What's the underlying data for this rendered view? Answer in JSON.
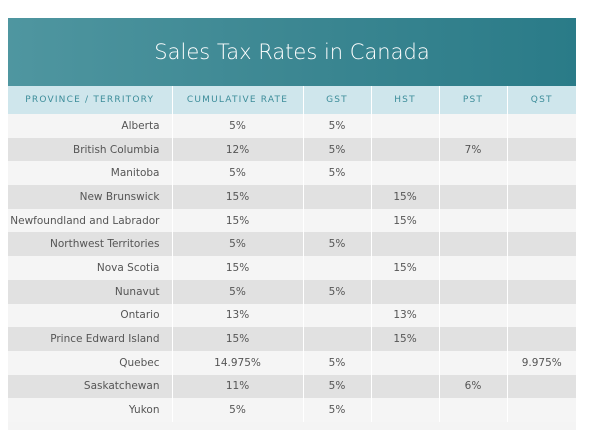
{
  "header": {
    "title": "Sales Tax Rates in Canada"
  },
  "table": {
    "columns": [
      "PROVINCE / TERRITORY",
      "CUMULATIVE RATE",
      "GST",
      "HST",
      "PST",
      "QST"
    ],
    "rows": [
      [
        "Alberta",
        "5%",
        "5%",
        null,
        null,
        null
      ],
      [
        "British Columbia",
        "12%",
        "5%",
        null,
        "7%",
        null
      ],
      [
        "Manitoba",
        "5%",
        "5%",
        null,
        null,
        null
      ],
      [
        "New Brunswick",
        "15%",
        null,
        "15%",
        null,
        null
      ],
      [
        "Newfoundland and Labrador",
        "15%",
        null,
        "15%",
        null,
        null
      ],
      [
        "Northwest Territories",
        "5%",
        "5%",
        null,
        null,
        null
      ],
      [
        "Nova Scotia",
        "15%",
        null,
        "15%",
        null,
        null
      ],
      [
        "Nunavut",
        "5%",
        "5%",
        null,
        null,
        null
      ],
      [
        "Ontario",
        "13%",
        null,
        "13%",
        null,
        null
      ],
      [
        "Prince Edward Island",
        "15%",
        null,
        "15%",
        null,
        null
      ],
      [
        "Quebec",
        "14.975%",
        "5%",
        null,
        null,
        "9.975%"
      ],
      [
        "Saskatchewan",
        "11%",
        "5%",
        null,
        "6%",
        null
      ],
      [
        "Yukon",
        "5%",
        "5%",
        null,
        null,
        null
      ]
    ]
  }
}
